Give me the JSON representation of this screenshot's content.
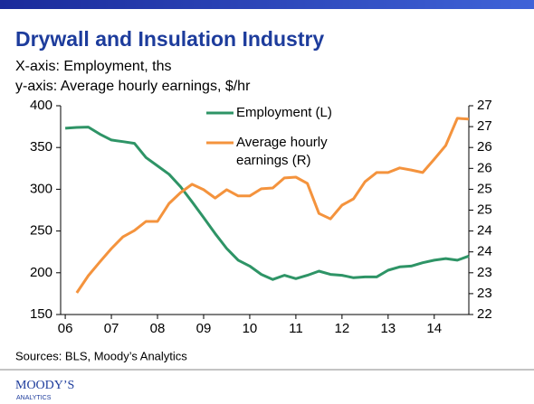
{
  "chart_data": {
    "type": "line",
    "title": "Drywall and Insulation Industry",
    "subtitle": [
      "X-axis: Employment, ths",
      "y-axis: Average hourly earnings, $/hr"
    ],
    "source": "Sources: BLS, Moody’s Analytics",
    "logo": [
      "MOODY’S",
      "ANALYTICS"
    ],
    "xlim": [
      2005.9,
      2014.75
    ],
    "xticks": [
      {
        "value": 2006,
        "label": "06"
      },
      {
        "value": 2007,
        "label": "07"
      },
      {
        "value": 2008,
        "label": "08"
      },
      {
        "value": 2009,
        "label": "09"
      },
      {
        "value": 2010,
        "label": "10"
      },
      {
        "value": 2011,
        "label": "11"
      },
      {
        "value": 2012,
        "label": "12"
      },
      {
        "value": 2013,
        "label": "13"
      },
      {
        "value": 2014,
        "label": "14"
      }
    ],
    "ylim": [
      150,
      400
    ],
    "yticks": [
      150,
      200,
      250,
      300,
      350,
      400
    ],
    "y2lim": [
      22,
      27
    ],
    "y2ticks": [
      22,
      {
        "value": 22.5,
        "label": "23"
      },
      23,
      {
        "value": 23.5,
        "label": "24"
      },
      24,
      {
        "value": 24.5,
        "label": "25"
      },
      25,
      {
        "value": 25.5,
        "label": "26"
      },
      26,
      {
        "value": 26.5,
        "label": "27"
      },
      27
    ],
    "series": [
      {
        "name": "Employment (L)",
        "color": "#2e9466",
        "x": [
          2006,
          2006.25,
          2006.5,
          2006.75,
          2007,
          2007.25,
          2007.5,
          2007.75,
          2008,
          2008.25,
          2008.5,
          2008.75,
          2009,
          2009.25,
          2009.5,
          2009.75,
          2010,
          2010.25,
          2010.5,
          2010.75,
          2011,
          2011.25,
          2011.5,
          2011.75,
          2012,
          2012.25,
          2012.5,
          2012.75,
          2013,
          2013.25,
          2013.5,
          2013.75,
          2014,
          2014.25,
          2014.5,
          2014.75
        ],
        "values": [
          373,
          374,
          374.5,
          366,
          359,
          357,
          355,
          338,
          328,
          318,
          303,
          285,
          266,
          247,
          229,
          215,
          208,
          198,
          192,
          197,
          193,
          197,
          202,
          198,
          197,
          194,
          195,
          195,
          203,
          207,
          208,
          212,
          215,
          217,
          215,
          220
        ]
      },
      {
        "name": "Average hourly earnings (R)",
        "color": "#f4933d",
        "axis": "y2",
        "x": [
          2006.25,
          2006.5,
          2006.75,
          2007,
          2007.25,
          2007.5,
          2007.75,
          2008,
          2008.25,
          2008.5,
          2008.75,
          2009,
          2009.25,
          2009.5,
          2009.75,
          2010,
          2010.25,
          2010.5,
          2010.75,
          2011,
          2011.25,
          2011.5,
          2011.75,
          2012,
          2012.25,
          2012.5,
          2012.75,
          2013,
          2013.25,
          2013.5,
          2013.75,
          2014,
          2014.25,
          2014.5,
          2014.75
        ],
        "values": [
          22.52,
          22.93,
          23.26,
          23.58,
          23.86,
          24.01,
          24.23,
          24.23,
          24.66,
          24.92,
          25.12,
          24.99,
          24.79,
          24.99,
          24.84,
          24.84,
          25.01,
          25.03,
          25.27,
          25.29,
          25.14,
          24.42,
          24.29,
          24.62,
          24.77,
          25.18,
          25.4,
          25.4,
          25.51,
          25.46,
          25.4,
          25.72,
          26.05,
          26.7,
          26.68
        ]
      }
    ]
  }
}
